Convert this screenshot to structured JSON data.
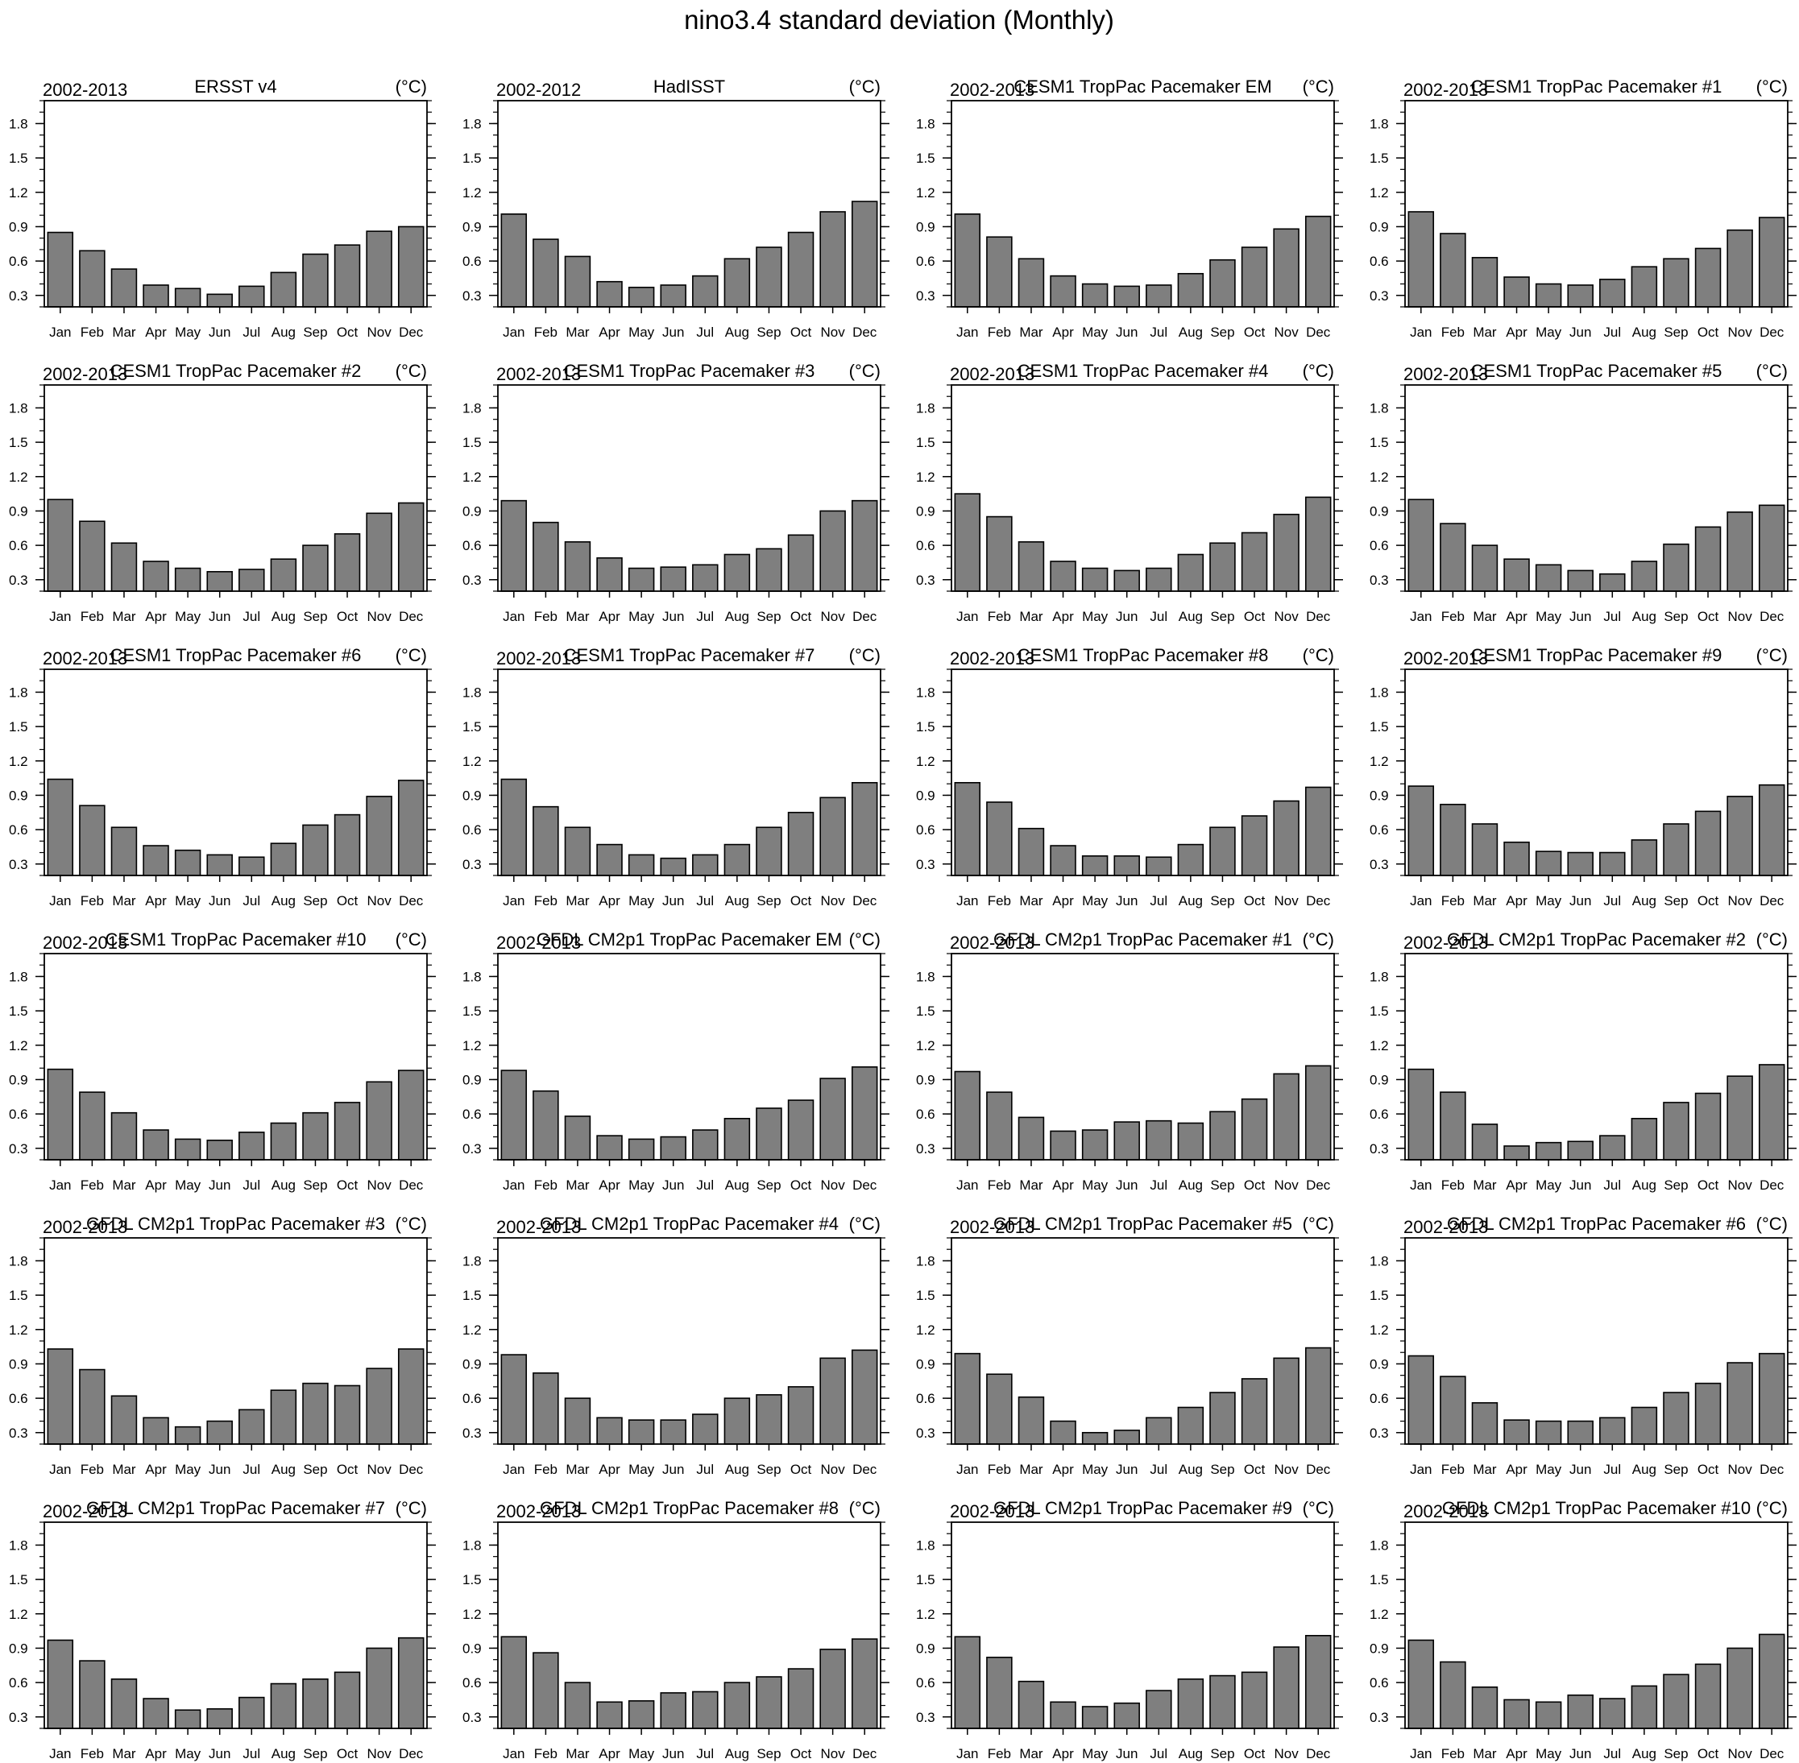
{
  "figure": {
    "title": "nino3.4 standard deviation (Monthly)"
  },
  "chart_data": [
    {
      "type": "bar",
      "left_label": "2002-2013",
      "title": "ERSST v4",
      "unit_label": "(°C)",
      "categories": [
        "Jan",
        "Feb",
        "Mar",
        "Apr",
        "May",
        "Jun",
        "Jul",
        "Aug",
        "Sep",
        "Oct",
        "Nov",
        "Dec"
      ],
      "values": [
        0.85,
        0.69,
        0.53,
        0.39,
        0.36,
        0.31,
        0.38,
        0.5,
        0.66,
        0.74,
        0.86,
        0.9
      ],
      "ylim": [
        0.2,
        2.0
      ],
      "yticks": [
        0.3,
        0.6,
        0.9,
        1.2,
        1.5,
        1.8
      ],
      "bar_color": "#7f7f7f"
    },
    {
      "type": "bar",
      "left_label": "2002-2012",
      "title": "HadISST",
      "unit_label": "(°C)",
      "categories": [
        "Jan",
        "Feb",
        "Mar",
        "Apr",
        "May",
        "Jun",
        "Jul",
        "Aug",
        "Sep",
        "Oct",
        "Nov",
        "Dec"
      ],
      "values": [
        1.01,
        0.79,
        0.64,
        0.42,
        0.37,
        0.39,
        0.47,
        0.62,
        0.72,
        0.85,
        1.03,
        1.12
      ],
      "ylim": [
        0.2,
        2.0
      ],
      "yticks": [
        0.3,
        0.6,
        0.9,
        1.2,
        1.5,
        1.8
      ],
      "bar_color": "#7f7f7f"
    },
    {
      "type": "bar",
      "left_label": "2002-2013",
      "title": "CESM1 TropPac Pacemaker EM",
      "unit_label": "(°C)",
      "categories": [
        "Jan",
        "Feb",
        "Mar",
        "Apr",
        "May",
        "Jun",
        "Jul",
        "Aug",
        "Sep",
        "Oct",
        "Nov",
        "Dec"
      ],
      "values": [
        1.01,
        0.81,
        0.62,
        0.47,
        0.4,
        0.38,
        0.39,
        0.49,
        0.61,
        0.72,
        0.88,
        0.99
      ],
      "ylim": [
        0.2,
        2.0
      ],
      "yticks": [
        0.3,
        0.6,
        0.9,
        1.2,
        1.5,
        1.8
      ],
      "bar_color": "#7f7f7f"
    },
    {
      "type": "bar",
      "left_label": "2002-2013",
      "title": "CESM1 TropPac Pacemaker #1",
      "unit_label": "(°C)",
      "categories": [
        "Jan",
        "Feb",
        "Mar",
        "Apr",
        "May",
        "Jun",
        "Jul",
        "Aug",
        "Sep",
        "Oct",
        "Nov",
        "Dec"
      ],
      "values": [
        1.03,
        0.84,
        0.63,
        0.46,
        0.4,
        0.39,
        0.44,
        0.55,
        0.62,
        0.71,
        0.87,
        0.98
      ],
      "ylim": [
        0.2,
        2.0
      ],
      "yticks": [
        0.3,
        0.6,
        0.9,
        1.2,
        1.5,
        1.8
      ],
      "bar_color": "#7f7f7f"
    },
    {
      "type": "bar",
      "left_label": "2002-2013",
      "title": "CESM1 TropPac Pacemaker #2",
      "unit_label": "(°C)",
      "categories": [
        "Jan",
        "Feb",
        "Mar",
        "Apr",
        "May",
        "Jun",
        "Jul",
        "Aug",
        "Sep",
        "Oct",
        "Nov",
        "Dec"
      ],
      "values": [
        1.0,
        0.81,
        0.62,
        0.46,
        0.4,
        0.37,
        0.39,
        0.48,
        0.6,
        0.7,
        0.88,
        0.97
      ],
      "ylim": [
        0.2,
        2.0
      ],
      "yticks": [
        0.3,
        0.6,
        0.9,
        1.2,
        1.5,
        1.8
      ],
      "bar_color": "#7f7f7f"
    },
    {
      "type": "bar",
      "left_label": "2002-2013",
      "title": "CESM1 TropPac Pacemaker #3",
      "unit_label": "(°C)",
      "categories": [
        "Jan",
        "Feb",
        "Mar",
        "Apr",
        "May",
        "Jun",
        "Jul",
        "Aug",
        "Sep",
        "Oct",
        "Nov",
        "Dec"
      ],
      "values": [
        0.99,
        0.8,
        0.63,
        0.49,
        0.4,
        0.41,
        0.43,
        0.52,
        0.57,
        0.69,
        0.9,
        0.99
      ],
      "ylim": [
        0.2,
        2.0
      ],
      "yticks": [
        0.3,
        0.6,
        0.9,
        1.2,
        1.5,
        1.8
      ],
      "bar_color": "#7f7f7f"
    },
    {
      "type": "bar",
      "left_label": "2002-2013",
      "title": "CESM1 TropPac Pacemaker #4",
      "unit_label": "(°C)",
      "categories": [
        "Jan",
        "Feb",
        "Mar",
        "Apr",
        "May",
        "Jun",
        "Jul",
        "Aug",
        "Sep",
        "Oct",
        "Nov",
        "Dec"
      ],
      "values": [
        1.05,
        0.85,
        0.63,
        0.46,
        0.4,
        0.38,
        0.4,
        0.52,
        0.62,
        0.71,
        0.87,
        1.02
      ],
      "ylim": [
        0.2,
        2.0
      ],
      "yticks": [
        0.3,
        0.6,
        0.9,
        1.2,
        1.5,
        1.8
      ],
      "bar_color": "#7f7f7f"
    },
    {
      "type": "bar",
      "left_label": "2002-2013",
      "title": "CESM1 TropPac Pacemaker #5",
      "unit_label": "(°C)",
      "categories": [
        "Jan",
        "Feb",
        "Mar",
        "Apr",
        "May",
        "Jun",
        "Jul",
        "Aug",
        "Sep",
        "Oct",
        "Nov",
        "Dec"
      ],
      "values": [
        1.0,
        0.79,
        0.6,
        0.48,
        0.43,
        0.38,
        0.35,
        0.46,
        0.61,
        0.76,
        0.89,
        0.95
      ],
      "ylim": [
        0.2,
        2.0
      ],
      "yticks": [
        0.3,
        0.6,
        0.9,
        1.2,
        1.5,
        1.8
      ],
      "bar_color": "#7f7f7f"
    },
    {
      "type": "bar",
      "left_label": "2002-2013",
      "title": "CESM1 TropPac Pacemaker #6",
      "unit_label": "(°C)",
      "categories": [
        "Jan",
        "Feb",
        "Mar",
        "Apr",
        "May",
        "Jun",
        "Jul",
        "Aug",
        "Sep",
        "Oct",
        "Nov",
        "Dec"
      ],
      "values": [
        1.04,
        0.81,
        0.62,
        0.46,
        0.42,
        0.38,
        0.36,
        0.48,
        0.64,
        0.73,
        0.89,
        1.03
      ],
      "ylim": [
        0.2,
        2.0
      ],
      "yticks": [
        0.3,
        0.6,
        0.9,
        1.2,
        1.5,
        1.8
      ],
      "bar_color": "#7f7f7f"
    },
    {
      "type": "bar",
      "left_label": "2002-2013",
      "title": "CESM1 TropPac Pacemaker #7",
      "unit_label": "(°C)",
      "categories": [
        "Jan",
        "Feb",
        "Mar",
        "Apr",
        "May",
        "Jun",
        "Jul",
        "Aug",
        "Sep",
        "Oct",
        "Nov",
        "Dec"
      ],
      "values": [
        1.04,
        0.8,
        0.62,
        0.47,
        0.38,
        0.35,
        0.38,
        0.47,
        0.62,
        0.75,
        0.88,
        1.01
      ],
      "ylim": [
        0.2,
        2.0
      ],
      "yticks": [
        0.3,
        0.6,
        0.9,
        1.2,
        1.5,
        1.8
      ],
      "bar_color": "#7f7f7f"
    },
    {
      "type": "bar",
      "left_label": "2002-2013",
      "title": "CESM1 TropPac Pacemaker #8",
      "unit_label": "(°C)",
      "categories": [
        "Jan",
        "Feb",
        "Mar",
        "Apr",
        "May",
        "Jun",
        "Jul",
        "Aug",
        "Sep",
        "Oct",
        "Nov",
        "Dec"
      ],
      "values": [
        1.01,
        0.84,
        0.61,
        0.46,
        0.37,
        0.37,
        0.36,
        0.47,
        0.62,
        0.72,
        0.85,
        0.97
      ],
      "ylim": [
        0.2,
        2.0
      ],
      "yticks": [
        0.3,
        0.6,
        0.9,
        1.2,
        1.5,
        1.8
      ],
      "bar_color": "#7f7f7f"
    },
    {
      "type": "bar",
      "left_label": "2002-2013",
      "title": "CESM1 TropPac Pacemaker #9",
      "unit_label": "(°C)",
      "categories": [
        "Jan",
        "Feb",
        "Mar",
        "Apr",
        "May",
        "Jun",
        "Jul",
        "Aug",
        "Sep",
        "Oct",
        "Nov",
        "Dec"
      ],
      "values": [
        0.98,
        0.82,
        0.65,
        0.49,
        0.41,
        0.4,
        0.4,
        0.51,
        0.65,
        0.76,
        0.89,
        0.99
      ],
      "ylim": [
        0.2,
        2.0
      ],
      "yticks": [
        0.3,
        0.6,
        0.9,
        1.2,
        1.5,
        1.8
      ],
      "bar_color": "#7f7f7f"
    },
    {
      "type": "bar",
      "left_label": "2002-2013",
      "title": "CESM1 TropPac Pacemaker #10",
      "unit_label": "(°C)",
      "categories": [
        "Jan",
        "Feb",
        "Mar",
        "Apr",
        "May",
        "Jun",
        "Jul",
        "Aug",
        "Sep",
        "Oct",
        "Nov",
        "Dec"
      ],
      "values": [
        0.99,
        0.79,
        0.61,
        0.46,
        0.38,
        0.37,
        0.44,
        0.52,
        0.61,
        0.7,
        0.88,
        0.98
      ],
      "ylim": [
        0.2,
        2.0
      ],
      "yticks": [
        0.3,
        0.6,
        0.9,
        1.2,
        1.5,
        1.8
      ],
      "bar_color": "#7f7f7f"
    },
    {
      "type": "bar",
      "left_label": "2002-2013",
      "title": "GFDL CM2p1 TropPac Pacemaker EM",
      "unit_label": "(°C)",
      "categories": [
        "Jan",
        "Feb",
        "Mar",
        "Apr",
        "May",
        "Jun",
        "Jul",
        "Aug",
        "Sep",
        "Oct",
        "Nov",
        "Dec"
      ],
      "values": [
        0.98,
        0.8,
        0.58,
        0.41,
        0.38,
        0.4,
        0.46,
        0.56,
        0.65,
        0.72,
        0.91,
        1.01
      ],
      "ylim": [
        0.2,
        2.0
      ],
      "yticks": [
        0.3,
        0.6,
        0.9,
        1.2,
        1.5,
        1.8
      ],
      "bar_color": "#7f7f7f"
    },
    {
      "type": "bar",
      "left_label": "2002-2013",
      "title": "GFDL CM2p1 TropPac Pacemaker #1",
      "unit_label": "(°C)",
      "categories": [
        "Jan",
        "Feb",
        "Mar",
        "Apr",
        "May",
        "Jun",
        "Jul",
        "Aug",
        "Sep",
        "Oct",
        "Nov",
        "Dec"
      ],
      "values": [
        0.97,
        0.79,
        0.57,
        0.45,
        0.46,
        0.53,
        0.54,
        0.52,
        0.62,
        0.73,
        0.95,
        1.02
      ],
      "ylim": [
        0.2,
        2.0
      ],
      "yticks": [
        0.3,
        0.6,
        0.9,
        1.2,
        1.5,
        1.8
      ],
      "bar_color": "#7f7f7f"
    },
    {
      "type": "bar",
      "left_label": "2002-2013",
      "title": "GFDL CM2p1 TropPac Pacemaker #2",
      "unit_label": "(°C)",
      "categories": [
        "Jan",
        "Feb",
        "Mar",
        "Apr",
        "May",
        "Jun",
        "Jul",
        "Aug",
        "Sep",
        "Oct",
        "Nov",
        "Dec"
      ],
      "values": [
        0.99,
        0.79,
        0.51,
        0.32,
        0.35,
        0.36,
        0.41,
        0.56,
        0.7,
        0.78,
        0.93,
        1.03
      ],
      "ylim": [
        0.2,
        2.0
      ],
      "yticks": [
        0.3,
        0.6,
        0.9,
        1.2,
        1.5,
        1.8
      ],
      "bar_color": "#7f7f7f"
    },
    {
      "type": "bar",
      "left_label": "2002-2013",
      "title": "GFDL CM2p1 TropPac Pacemaker #3",
      "unit_label": "(°C)",
      "categories": [
        "Jan",
        "Feb",
        "Mar",
        "Apr",
        "May",
        "Jun",
        "Jul",
        "Aug",
        "Sep",
        "Oct",
        "Nov",
        "Dec"
      ],
      "values": [
        1.03,
        0.85,
        0.62,
        0.43,
        0.35,
        0.4,
        0.5,
        0.67,
        0.73,
        0.71,
        0.86,
        1.03
      ],
      "ylim": [
        0.2,
        2.0
      ],
      "yticks": [
        0.3,
        0.6,
        0.9,
        1.2,
        1.5,
        1.8
      ],
      "bar_color": "#7f7f7f"
    },
    {
      "type": "bar",
      "left_label": "2002-2013",
      "title": "GFDL CM2p1 TropPac Pacemaker #4",
      "unit_label": "(°C)",
      "categories": [
        "Jan",
        "Feb",
        "Mar",
        "Apr",
        "May",
        "Jun",
        "Jul",
        "Aug",
        "Sep",
        "Oct",
        "Nov",
        "Dec"
      ],
      "values": [
        0.98,
        0.82,
        0.6,
        0.43,
        0.41,
        0.41,
        0.46,
        0.6,
        0.63,
        0.7,
        0.95,
        1.02
      ],
      "ylim": [
        0.2,
        2.0
      ],
      "yticks": [
        0.3,
        0.6,
        0.9,
        1.2,
        1.5,
        1.8
      ],
      "bar_color": "#7f7f7f"
    },
    {
      "type": "bar",
      "left_label": "2002-2013",
      "title": "GFDL CM2p1 TropPac Pacemaker #5",
      "unit_label": "(°C)",
      "categories": [
        "Jan",
        "Feb",
        "Mar",
        "Apr",
        "May",
        "Jun",
        "Jul",
        "Aug",
        "Sep",
        "Oct",
        "Nov",
        "Dec"
      ],
      "values": [
        0.99,
        0.81,
        0.61,
        0.4,
        0.3,
        0.32,
        0.43,
        0.52,
        0.65,
        0.77,
        0.95,
        1.04
      ],
      "ylim": [
        0.2,
        2.0
      ],
      "yticks": [
        0.3,
        0.6,
        0.9,
        1.2,
        1.5,
        1.8
      ],
      "bar_color": "#7f7f7f"
    },
    {
      "type": "bar",
      "left_label": "2002-2013",
      "title": "GFDL CM2p1 TropPac Pacemaker #6",
      "unit_label": "(°C)",
      "categories": [
        "Jan",
        "Feb",
        "Mar",
        "Apr",
        "May",
        "Jun",
        "Jul",
        "Aug",
        "Sep",
        "Oct",
        "Nov",
        "Dec"
      ],
      "values": [
        0.97,
        0.79,
        0.56,
        0.41,
        0.4,
        0.4,
        0.43,
        0.52,
        0.65,
        0.73,
        0.91,
        0.99
      ],
      "ylim": [
        0.2,
        2.0
      ],
      "yticks": [
        0.3,
        0.6,
        0.9,
        1.2,
        1.5,
        1.8
      ],
      "bar_color": "#7f7f7f"
    },
    {
      "type": "bar",
      "left_label": "2002-2013",
      "title": "GFDL CM2p1 TropPac Pacemaker #7",
      "unit_label": "(°C)",
      "categories": [
        "Jan",
        "Feb",
        "Mar",
        "Apr",
        "May",
        "Jun",
        "Jul",
        "Aug",
        "Sep",
        "Oct",
        "Nov",
        "Dec"
      ],
      "values": [
        0.97,
        0.79,
        0.63,
        0.46,
        0.36,
        0.37,
        0.47,
        0.59,
        0.63,
        0.69,
        0.9,
        0.99
      ],
      "ylim": [
        0.2,
        2.0
      ],
      "yticks": [
        0.3,
        0.6,
        0.9,
        1.2,
        1.5,
        1.8
      ],
      "bar_color": "#7f7f7f"
    },
    {
      "type": "bar",
      "left_label": "2002-2013",
      "title": "GFDL CM2p1 TropPac Pacemaker #8",
      "unit_label": "(°C)",
      "categories": [
        "Jan",
        "Feb",
        "Mar",
        "Apr",
        "May",
        "Jun",
        "Jul",
        "Aug",
        "Sep",
        "Oct",
        "Nov",
        "Dec"
      ],
      "values": [
        1.0,
        0.86,
        0.6,
        0.43,
        0.44,
        0.51,
        0.52,
        0.6,
        0.65,
        0.72,
        0.89,
        0.98
      ],
      "ylim": [
        0.2,
        2.0
      ],
      "yticks": [
        0.3,
        0.6,
        0.9,
        1.2,
        1.5,
        1.8
      ],
      "bar_color": "#7f7f7f"
    },
    {
      "type": "bar",
      "left_label": "2002-2013",
      "title": "GFDL CM2p1 TropPac Pacemaker #9",
      "unit_label": "(°C)",
      "categories": [
        "Jan",
        "Feb",
        "Mar",
        "Apr",
        "May",
        "Jun",
        "Jul",
        "Aug",
        "Sep",
        "Oct",
        "Nov",
        "Dec"
      ],
      "values": [
        1.0,
        0.82,
        0.61,
        0.43,
        0.39,
        0.42,
        0.53,
        0.63,
        0.66,
        0.69,
        0.91,
        1.01
      ],
      "ylim": [
        0.2,
        2.0
      ],
      "yticks": [
        0.3,
        0.6,
        0.9,
        1.2,
        1.5,
        1.8
      ],
      "bar_color": "#7f7f7f"
    },
    {
      "type": "bar",
      "left_label": "2002-2013",
      "title": "GFDL CM2p1 TropPac Pacemaker #10",
      "unit_label": "(°C)",
      "categories": [
        "Jan",
        "Feb",
        "Mar",
        "Apr",
        "May",
        "Jun",
        "Jul",
        "Aug",
        "Sep",
        "Oct",
        "Nov",
        "Dec"
      ],
      "values": [
        0.97,
        0.78,
        0.56,
        0.45,
        0.43,
        0.49,
        0.46,
        0.57,
        0.67,
        0.76,
        0.9,
        1.02
      ],
      "ylim": [
        0.2,
        2.0
      ],
      "yticks": [
        0.3,
        0.6,
        0.9,
        1.2,
        1.5,
        1.8
      ],
      "bar_color": "#7f7f7f"
    }
  ]
}
